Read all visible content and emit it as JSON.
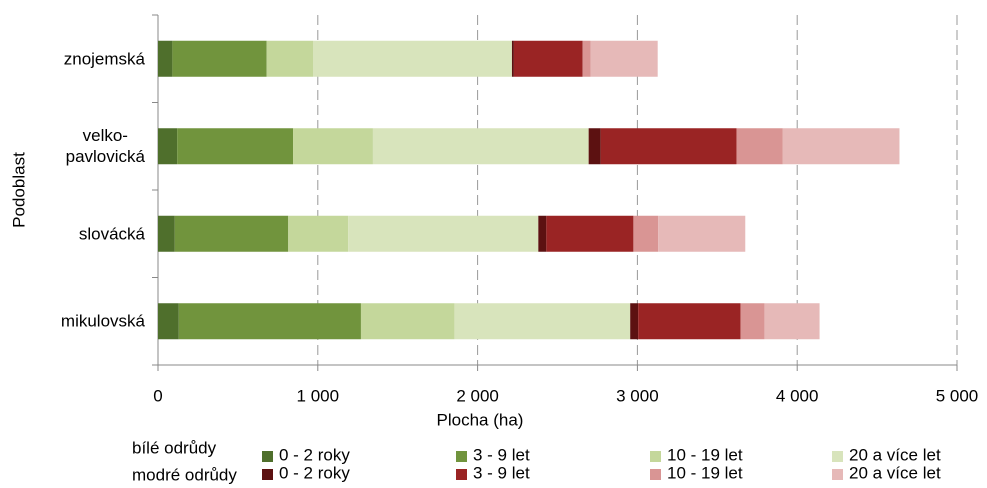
{
  "chart_data": {
    "type": "stacked_barh",
    "xlabel": "Plocha  (ha)",
    "ylabel": "Podoblast",
    "categories": [
      "znojemská",
      "velko-\npavlovická",
      "slovácká",
      "mikulovská"
    ],
    "legend_groups": [
      "bílé odrůdy",
      "modré odrůdy"
    ],
    "series": [
      {
        "name": "0 - 2 roky",
        "color": "#4f6f2c",
        "values": [
          90,
          120,
          105,
          130
        ]
      },
      {
        "name": "3 - 9 let",
        "color": "#71943d",
        "values": [
          590,
          725,
          710,
          1140
        ]
      },
      {
        "name": "10 - 19 let",
        "color": "#c4d79b",
        "values": [
          290,
          500,
          375,
          585
        ]
      },
      {
        "name": "20 a více let",
        "color": "#d8e4bc",
        "values": [
          1245,
          1350,
          1190,
          1100
        ]
      },
      {
        "name": "0 - 2 roky",
        "color": "#5c1111",
        "values": [
          12,
          75,
          50,
          50
        ]
      },
      {
        "name": "3 - 9 let",
        "color": "#9a2424",
        "values": [
          430,
          850,
          545,
          640
        ]
      },
      {
        "name": "10 - 19 let",
        "color": "#d99594",
        "values": [
          50,
          290,
          155,
          150
        ]
      },
      {
        "name": "20 a více let",
        "color": "#e6b9b8",
        "values": [
          420,
          730,
          545,
          345
        ]
      }
    ],
    "xlim": [
      0,
      5000
    ],
    "xticks": [
      0,
      {
        "value": 1000,
        "label": "1 000"
      },
      {
        "value": 2000,
        "label": "2 000"
      },
      {
        "value": 3000,
        "label": "3 000"
      },
      {
        "value": 4000,
        "label": "4 000"
      },
      {
        "value": 5000,
        "label": "5 000"
      }
    ],
    "grid": true
  }
}
